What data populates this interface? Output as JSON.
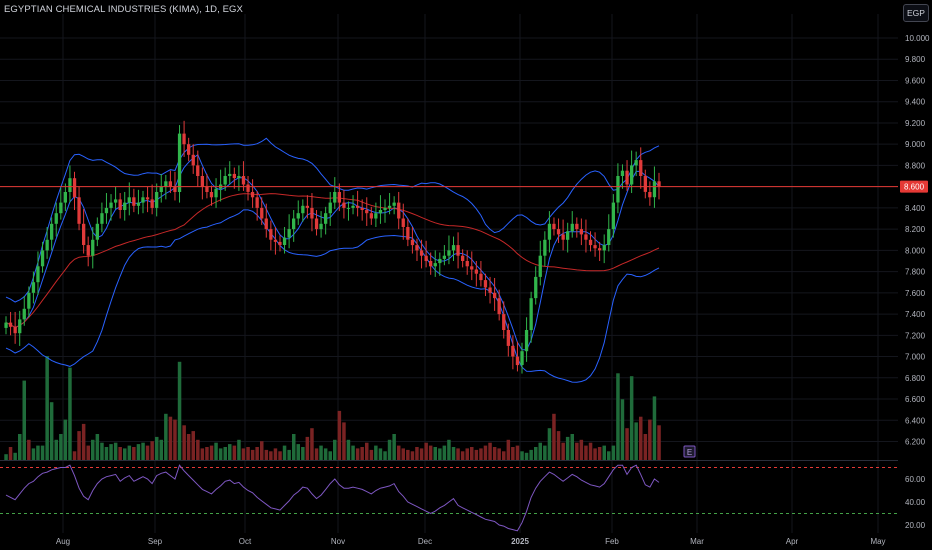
{
  "header": {
    "title": "EGYPTIAN CHEMICAL INDUSTRIES (KIMA), 1D, EGX",
    "currency": "EGP"
  },
  "colors": {
    "up": "#26a69a",
    "up_candle": "#31b54b",
    "down": "#e03a3a",
    "bollinger": "#2962ff",
    "ma_red": "#c62828",
    "rsi": "#7e57c2",
    "price_line": "#e53935",
    "volume_up": "#1f6b3a",
    "volume_down": "#7a2323",
    "rsi_upper_band": "#e53935",
    "rsi_lower_band": "#43a047"
  },
  "badges": {
    "earnings_marker": "E"
  },
  "chart_data": [
    {
      "type": "candlestick",
      "title": "EGYPTIAN CHEMICAL INDUSTRIES (KIMA), 1D, EGX",
      "ylim": [
        6.1,
        10.15
      ],
      "y_ticks": [
        "10.000",
        "9.800",
        "9.600",
        "9.400",
        "9.200",
        "9.000",
        "8.800",
        "8.600",
        "8.400",
        "8.200",
        "8.000",
        "7.800",
        "7.600",
        "7.400",
        "7.200",
        "7.000",
        "6.800",
        "6.600",
        "6.400",
        "6.200"
      ],
      "x_ticks": [
        "Aug",
        "Sep",
        "Oct",
        "Nov",
        "Dec",
        "2025",
        "Feb",
        "Mar",
        "Apr",
        "May"
      ],
      "last_price": "8.600",
      "closes": [
        7.32,
        7.28,
        7.22,
        7.35,
        7.45,
        7.6,
        7.7,
        7.85,
        8.0,
        8.1,
        8.25,
        8.35,
        8.45,
        8.55,
        8.68,
        8.5,
        8.25,
        8.05,
        7.95,
        8.1,
        8.25,
        8.35,
        8.4,
        8.45,
        8.48,
        8.38,
        8.45,
        8.5,
        8.42,
        8.45,
        8.5,
        8.48,
        8.4,
        8.55,
        8.6,
        8.65,
        8.6,
        8.55,
        9.1,
        9.0,
        8.9,
        8.8,
        8.7,
        8.6,
        8.55,
        8.5,
        8.58,
        8.62,
        8.7,
        8.72,
        8.68,
        8.7,
        8.62,
        8.55,
        8.5,
        8.4,
        8.3,
        8.2,
        8.1,
        8.08,
        8.05,
        8.12,
        8.2,
        8.3,
        8.35,
        8.42,
        8.4,
        8.3,
        8.2,
        8.25,
        8.35,
        8.45,
        8.55,
        8.45,
        8.4,
        8.4,
        8.42,
        8.4,
        8.38,
        8.35,
        8.3,
        8.35,
        8.38,
        8.4,
        8.42,
        8.45,
        8.3,
        8.22,
        8.1,
        8.05,
        8.0,
        7.95,
        7.9,
        7.85,
        7.88,
        7.92,
        7.95,
        8.0,
        8.05,
        7.95,
        7.9,
        7.85,
        7.82,
        7.78,
        7.72,
        7.65,
        7.6,
        7.55,
        7.4,
        7.25,
        7.1,
        7.0,
        6.92,
        7.05,
        7.25,
        7.55,
        7.75,
        7.95,
        8.1,
        8.25,
        8.2,
        8.15,
        8.1,
        8.18,
        8.25,
        8.2,
        8.15,
        8.1,
        8.05,
        8.02,
        8.0,
        8.05,
        8.2,
        8.45,
        8.7,
        8.75,
        8.62,
        8.8,
        8.85,
        8.7,
        8.55,
        8.5,
        8.65,
        8.6
      ],
      "series": [
        {
          "name": "",
          "kind": "bollinger_upper"
        },
        {
          "name": "",
          "kind": "bollinger_middle"
        },
        {
          "name": "",
          "kind": "bollinger_lower"
        },
        {
          "name": "",
          "kind": "moving_average"
        }
      ]
    },
    {
      "type": "bar",
      "title": "",
      "xlabel": "",
      "ylabel": "",
      "values": [
        4,
        9,
        5,
        18,
        55,
        14,
        8,
        10,
        10,
        72,
        40,
        14,
        18,
        28,
        64,
        6,
        20,
        25,
        10,
        14,
        18,
        12,
        9,
        11,
        12,
        9,
        8,
        10,
        9,
        11,
        12,
        10,
        13,
        16,
        14,
        32,
        30,
        28,
        68,
        24,
        18,
        20,
        14,
        8,
        9,
        10,
        12,
        8,
        9,
        11,
        10,
        14,
        8,
        9,
        7,
        9,
        13,
        7,
        6,
        8,
        6,
        10,
        7,
        18,
        11,
        9,
        16,
        22,
        8,
        10,
        8,
        6,
        14,
        34,
        26,
        14,
        10,
        8,
        9,
        12,
        7,
        10,
        8,
        6,
        14,
        18,
        10,
        8,
        7,
        6,
        9,
        8,
        12,
        10,
        9,
        8,
        10,
        14,
        9,
        8,
        6,
        8,
        9,
        7,
        8,
        10,
        12,
        9,
        8,
        6,
        14,
        9,
        10,
        6,
        5,
        7,
        9,
        12,
        10,
        22,
        32,
        20,
        12,
        16,
        18,
        12,
        14,
        10,
        12,
        8,
        9,
        10,
        6,
        10,
        60,
        42,
        22,
        58,
        26,
        30,
        18,
        28,
        44,
        24
      ],
      "up": [
        true,
        false,
        true,
        true,
        true,
        false,
        true,
        true,
        true,
        true,
        true,
        true,
        true,
        true,
        true,
        false,
        false,
        false,
        false,
        true,
        true,
        true,
        true,
        true,
        true,
        false,
        true,
        true,
        false,
        true,
        true,
        false,
        false,
        true,
        true,
        true,
        false,
        false,
        true,
        false,
        false,
        false,
        false,
        false,
        false,
        false,
        true,
        true,
        true,
        true,
        false,
        true,
        false,
        false,
        false,
        false,
        false,
        false,
        false,
        false,
        false,
        true,
        true,
        true,
        true,
        true,
        false,
        false,
        false,
        true,
        true,
        true,
        true,
        false,
        false,
        true,
        true,
        false,
        false,
        false,
        false,
        true,
        true,
        true,
        true,
        true,
        false,
        false,
        false,
        false,
        false,
        false,
        false,
        false,
        true,
        true,
        true,
        true,
        true,
        false,
        false,
        false,
        false,
        false,
        false,
        false,
        false,
        false,
        false,
        false,
        false,
        false,
        false,
        true,
        true,
        true,
        true,
        true,
        true,
        true,
        false,
        false,
        false,
        true,
        true,
        false,
        false,
        false,
        false,
        false,
        false,
        true,
        true,
        true,
        true,
        true,
        false,
        true,
        true,
        false,
        false,
        false,
        true,
        false
      ]
    },
    {
      "type": "line",
      "title": "",
      "xlabel": "",
      "ylabel": "",
      "ylim": [
        17,
        73
      ],
      "y_ticks": [
        "60.00",
        "40.00",
        "20.00"
      ],
      "bands": [
        70,
        30
      ],
      "values": [
        46,
        44,
        42,
        47,
        52,
        56,
        58,
        62,
        65,
        66,
        68,
        69,
        70,
        70,
        72,
        63,
        52,
        45,
        42,
        50,
        56,
        60,
        62,
        63,
        64,
        58,
        61,
        63,
        58,
        60,
        62,
        60,
        56,
        63,
        65,
        66,
        63,
        60,
        72,
        67,
        63,
        59,
        55,
        51,
        49,
        47,
        51,
        54,
        58,
        59,
        56,
        57,
        53,
        50,
        48,
        44,
        41,
        38,
        35,
        34,
        33,
        37,
        41,
        46,
        49,
        53,
        52,
        47,
        43,
        46,
        51,
        56,
        60,
        55,
        52,
        52,
        53,
        52,
        51,
        49,
        47,
        50,
        52,
        53,
        54,
        56,
        49,
        45,
        40,
        38,
        36,
        34,
        32,
        30,
        32,
        35,
        37,
        40,
        43,
        37,
        35,
        33,
        31,
        29,
        27,
        25,
        24,
        23,
        20,
        19,
        17,
        16,
        15,
        22,
        32,
        44,
        52,
        58,
        62,
        66,
        64,
        61,
        58,
        61,
        64,
        62,
        59,
        57,
        55,
        54,
        53,
        56,
        62,
        68,
        72,
        72,
        64,
        70,
        72,
        64,
        55,
        53,
        60,
        57
      ]
    }
  ]
}
